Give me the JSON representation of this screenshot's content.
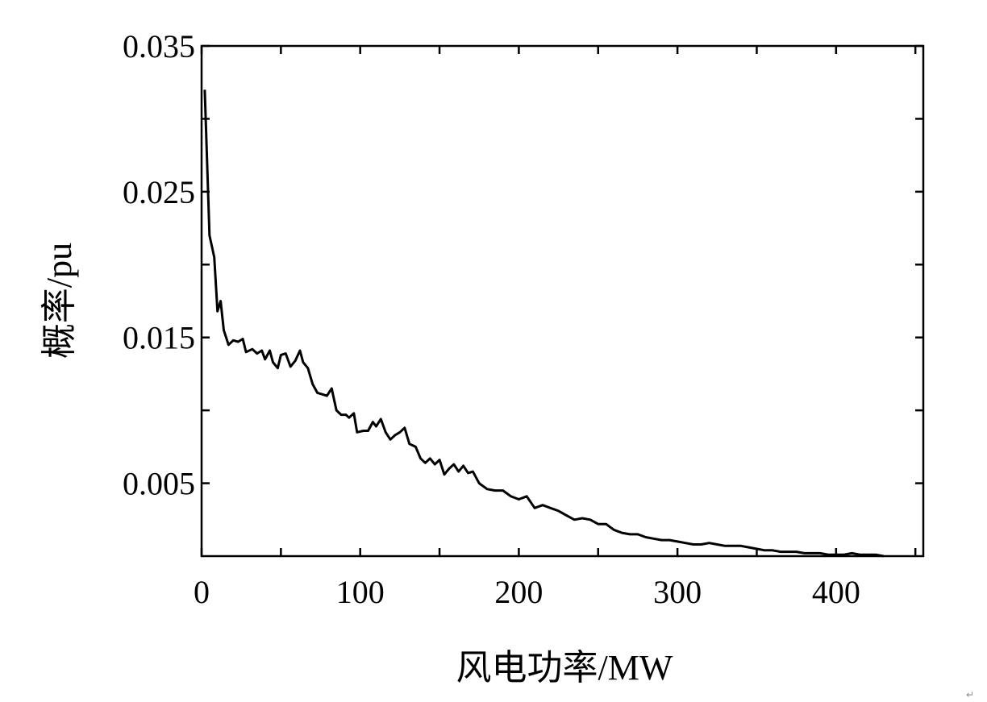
{
  "chart_data": {
    "type": "line",
    "xlabel": "风电功率/MW",
    "ylabel": "概率/pu",
    "xlim": [
      0,
      455
    ],
    "ylim": [
      0,
      0.035
    ],
    "x_ticks": [
      0,
      100,
      200,
      300,
      400
    ],
    "x_tick_labels": [
      "0",
      "100",
      "200",
      "300",
      "400"
    ],
    "y_ticks": [
      0.005,
      0.015,
      0.025,
      0.035
    ],
    "y_tick_labels": [
      "0.005",
      "0.015",
      "0.025",
      "0.035"
    ],
    "y_minor_ticks": [
      0.01,
      0.02,
      0.03
    ],
    "x_minor_ticks": [
      50,
      150,
      250,
      350,
      450
    ],
    "grid": false,
    "series": [
      {
        "color": "#000000",
        "x": [
          2,
          5,
          8,
          10,
          12,
          14,
          17,
          20,
          23,
          26,
          28,
          32,
          35,
          38,
          40,
          43,
          45,
          48,
          50,
          53,
          56,
          59,
          62,
          64,
          67,
          70,
          73,
          76,
          79,
          82,
          85,
          88,
          91,
          93,
          96,
          98,
          102,
          105,
          108,
          110,
          113,
          116,
          119,
          122,
          125,
          128,
          131,
          135,
          138,
          141,
          144,
          147,
          150,
          153,
          156,
          159,
          162,
          165,
          168,
          171,
          175,
          180,
          185,
          190,
          195,
          200,
          205,
          210,
          215,
          220,
          225,
          230,
          235,
          240,
          245,
          250,
          255,
          260,
          265,
          270,
          275,
          280,
          285,
          290,
          295,
          300,
          305,
          310,
          315,
          320,
          325,
          330,
          335,
          340,
          345,
          350,
          355,
          360,
          365,
          370,
          375,
          380,
          385,
          390,
          395,
          400,
          405,
          410,
          415,
          420,
          425,
          430
        ],
        "y": [
          0.032,
          0.022,
          0.0205,
          0.0168,
          0.0175,
          0.0155,
          0.0145,
          0.0148,
          0.0147,
          0.0149,
          0.014,
          0.0142,
          0.0139,
          0.0141,
          0.0135,
          0.0141,
          0.0133,
          0.0129,
          0.0138,
          0.0139,
          0.013,
          0.0134,
          0.0141,
          0.0133,
          0.0129,
          0.0118,
          0.0112,
          0.0111,
          0.011,
          0.0115,
          0.01,
          0.0097,
          0.0097,
          0.0095,
          0.0098,
          0.0085,
          0.0086,
          0.0086,
          0.0092,
          0.0089,
          0.0094,
          0.0085,
          0.008,
          0.0083,
          0.0085,
          0.0088,
          0.0077,
          0.0075,
          0.0067,
          0.0064,
          0.0067,
          0.0063,
          0.0066,
          0.0056,
          0.006,
          0.0063,
          0.0058,
          0.0062,
          0.0057,
          0.0058,
          0.005,
          0.0046,
          0.0045,
          0.0045,
          0.0041,
          0.0039,
          0.0041,
          0.0033,
          0.0035,
          0.0033,
          0.0031,
          0.0028,
          0.0025,
          0.0026,
          0.0025,
          0.0022,
          0.0022,
          0.0018,
          0.0016,
          0.0015,
          0.0015,
          0.0013,
          0.0012,
          0.0011,
          0.0011,
          0.001,
          0.0009,
          0.0008,
          0.0008,
          0.0009,
          0.0008,
          0.0007,
          0.0007,
          0.0007,
          0.0006,
          0.0005,
          0.0004,
          0.0004,
          0.0003,
          0.0003,
          0.0003,
          0.0002,
          0.0002,
          0.0002,
          0.0001,
          0.0001,
          0.0001,
          0.0002,
          0.0001,
          0.0001,
          0.0001,
          0.0
        ]
      }
    ]
  }
}
